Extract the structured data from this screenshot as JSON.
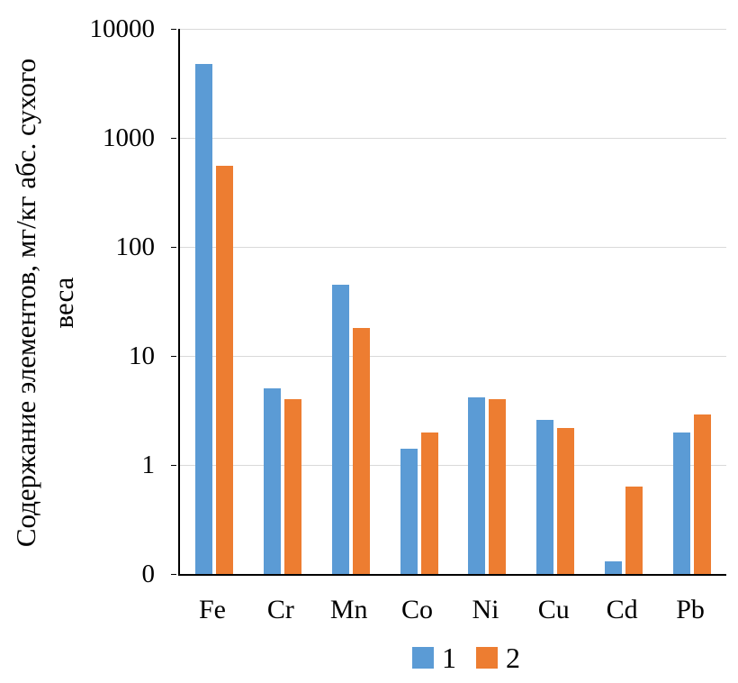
{
  "chart": {
    "ylabel_line1": "Содержание элементов, мг/кг абс. сухого",
    "ylabel_line2": "веса"
  },
  "chart_data": {
    "type": "bar",
    "y_scale": "log",
    "title": "",
    "xlabel": "",
    "ylabel": "Содержание элементов, мг/кг абс. сухого веса",
    "categories": [
      "Fe",
      "Cr",
      "Mn",
      "Co",
      "Ni",
      "Cu",
      "Cd",
      "Pb"
    ],
    "series": [
      {
        "name": "1",
        "color": "#5B9BD5",
        "values": [
          4800,
          5,
          45,
          1.4,
          4.2,
          2.6,
          0.13,
          2
        ]
      },
      {
        "name": "2",
        "color": "#ED7D31",
        "values": [
          550,
          4,
          18,
          2,
          4,
          2.2,
          0.63,
          2.9
        ]
      }
    ],
    "ylim": [
      0.1,
      10000
    ],
    "yticks": [
      {
        "value": 10000,
        "label": "10000"
      },
      {
        "value": 1000,
        "label": "1000"
      },
      {
        "value": 100,
        "label": "100"
      },
      {
        "value": 10,
        "label": "10"
      },
      {
        "value": 1,
        "label": "1"
      },
      {
        "value": 0.1,
        "label": "0"
      }
    ],
    "grid": true,
    "legend_position": "bottom",
    "colors": {
      "gridline": "#d9d9d9",
      "axis": "#000000",
      "text": "#000000"
    }
  }
}
